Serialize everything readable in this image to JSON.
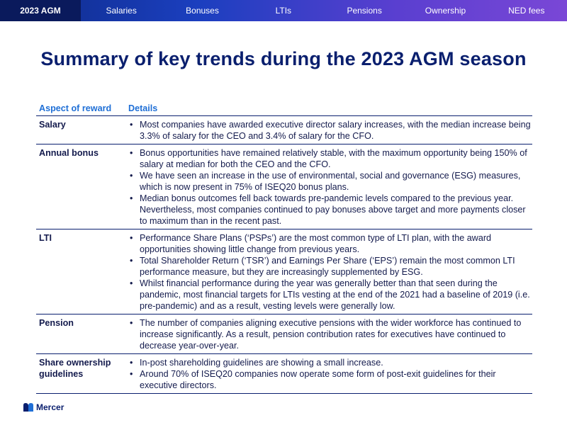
{
  "nav": {
    "tabs": [
      "2023 AGM",
      "Salaries",
      "Bonuses",
      "LTIs",
      "Pensions",
      "Ownership",
      "NED fees"
    ]
  },
  "title": "Summary of key trends during the 2023 AGM season",
  "table": {
    "headers": {
      "aspect": "Aspect of reward",
      "details": "Details"
    },
    "rows": [
      {
        "aspect": "Salary",
        "details": [
          "Most companies have awarded executive director salary increases, with the median increase being 3.3% of salary for the CEO and 3.4% of salary for the CFO."
        ]
      },
      {
        "aspect": "Annual bonus",
        "details": [
          "Bonus opportunities have remained relatively stable, with the maximum opportunity being 150% of salary at median for both the CEO and the CFO.",
          "We have seen an increase in the use of environmental, social and governance (ESG) measures, which is now present in 75% of ISEQ20 bonus plans.",
          "Median bonus outcomes fell back towards pre-pandemic levels compared to the previous year. Nevertheless, most companies continued to pay bonuses above target and more payments closer to maximum than in the recent past."
        ]
      },
      {
        "aspect": "LTI",
        "details": [
          "Performance Share Plans (‘PSPs’) are the most common type of LTI plan, with the award opportunities showing little change from previous years.",
          "Total Shareholder Return (‘TSR’) and Earnings Per Share (‘EPS’) remain the most common LTI performance measure, but they are increasingly supplemented by ESG.",
          "Whilst financial performance during the year was generally better than that seen during the pandemic, most financial targets for LTIs vesting at the end of the 2021 had a baseline of 2019 (i.e. pre-pandemic) and as a result, vesting levels were generally low."
        ]
      },
      {
        "aspect": "Pension",
        "details": [
          "The number of companies aligning executive pensions with the wider workforce has continued to increase significantly. As a result, pension contribution rates for executives have continued to decrease year-over-year."
        ]
      },
      {
        "aspect": "Share ownership guidelines",
        "details": [
          "In-post shareholding guidelines are showing a small increase.",
          "Around 70% of ISEQ20 companies now operate some form of post-exit guidelines for their executive directors."
        ]
      }
    ]
  },
  "footer": {
    "logo_text": "Mercer"
  }
}
